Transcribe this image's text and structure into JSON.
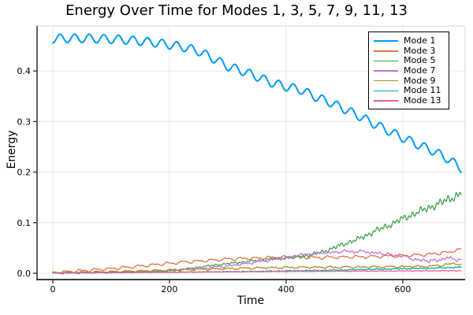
{
  "chart_data": {
    "type": "line",
    "title": "Energy Over Time for Modes 1, 3, 5, 7, 9, 11, 13",
    "xlabel": "Time",
    "ylabel": "Energy",
    "xlim": [
      -27,
      707
    ],
    "ylim": [
      -0.0125,
      0.489
    ],
    "grid": true,
    "legend_position": "top-right",
    "xticks": {
      "values": [
        0,
        200,
        400,
        600
      ],
      "labels": [
        "0",
        "200",
        "400",
        "600"
      ]
    },
    "yticks": {
      "values": [
        0.0,
        0.1,
        0.2,
        0.3,
        0.4
      ],
      "labels": [
        "0.0",
        "0.1",
        "0.2",
        "0.3",
        "0.4"
      ]
    },
    "colors": {
      "grid": "rgba(0,0,0,0.09)",
      "spine_dark": "#3c3c3c",
      "spine_light": "#d9d9d9",
      "tick": "#3c3c3c",
      "text": "#000000"
    },
    "series": [
      {
        "name": "Mode 1",
        "color": "#009af9",
        "width": 2,
        "osc": {
          "amp": 0.0085,
          "period": 25,
          "phase": -1.5708
        },
        "anchors": [
          [
            0,
            0.464
          ],
          [
            25,
            0.4645
          ],
          [
            50,
            0.4645
          ],
          [
            75,
            0.464
          ],
          [
            100,
            0.463
          ],
          [
            125,
            0.4615
          ],
          [
            150,
            0.459
          ],
          [
            175,
            0.456
          ],
          [
            200,
            0.452
          ],
          [
            225,
            0.447
          ],
          [
            250,
            0.439
          ],
          [
            275,
            0.425
          ],
          [
            300,
            0.409
          ],
          [
            325,
            0.4
          ],
          [
            350,
            0.389
          ],
          [
            375,
            0.377
          ],
          [
            400,
            0.369
          ],
          [
            425,
            0.363
          ],
          [
            450,
            0.349
          ],
          [
            475,
            0.338
          ],
          [
            500,
            0.325
          ],
          [
            525,
            0.311
          ],
          [
            550,
            0.296
          ],
          [
            575,
            0.282
          ],
          [
            600,
            0.268
          ],
          [
            625,
            0.255
          ],
          [
            650,
            0.243
          ],
          [
            675,
            0.228
          ],
          [
            700,
            0.208
          ]
        ]
      },
      {
        "name": "Mode 3",
        "color": "#e26f46",
        "width": 1.3,
        "osc": {
          "amp": 0.0022,
          "period": 25,
          "phase": 2.1,
          "saw": true
        },
        "noise": {
          "a0": 0.0006,
          "a1": 0.0008,
          "seed": 3
        },
        "anchors": [
          [
            0,
            0.0015
          ],
          [
            25,
            0.003
          ],
          [
            50,
            0.005
          ],
          [
            75,
            0.007
          ],
          [
            100,
            0.009
          ],
          [
            125,
            0.0115
          ],
          [
            150,
            0.014
          ],
          [
            175,
            0.017
          ],
          [
            200,
            0.0195
          ],
          [
            225,
            0.022
          ],
          [
            250,
            0.024
          ],
          [
            275,
            0.026
          ],
          [
            300,
            0.028
          ],
          [
            325,
            0.029
          ],
          [
            350,
            0.03
          ],
          [
            375,
            0.031
          ],
          [
            400,
            0.032
          ],
          [
            425,
            0.0315
          ],
          [
            450,
            0.031
          ],
          [
            475,
            0.0315
          ],
          [
            500,
            0.032
          ],
          [
            525,
            0.0325
          ],
          [
            550,
            0.033
          ],
          [
            575,
            0.034
          ],
          [
            600,
            0.035
          ],
          [
            625,
            0.036
          ],
          [
            650,
            0.038
          ],
          [
            675,
            0.041
          ],
          [
            690,
            0.045
          ],
          [
            700,
            0.047
          ]
        ]
      },
      {
        "name": "Mode 5",
        "color": "#3da44d",
        "width": 1.3,
        "noise": {
          "a0": 0.0008,
          "a1": 0.0105,
          "pow": 2.2,
          "seed": 5
        },
        "anchors": [
          [
            0,
            0.0005
          ],
          [
            50,
            0.001
          ],
          [
            100,
            0.002
          ],
          [
            150,
            0.003
          ],
          [
            200,
            0.0045
          ],
          [
            225,
            0.008
          ],
          [
            250,
            0.012
          ],
          [
            300,
            0.019
          ],
          [
            325,
            0.022
          ],
          [
            350,
            0.025
          ],
          [
            375,
            0.028
          ],
          [
            400,
            0.03
          ],
          [
            425,
            0.033
          ],
          [
            450,
            0.038
          ],
          [
            475,
            0.047
          ],
          [
            500,
            0.058
          ],
          [
            525,
            0.068
          ],
          [
            550,
            0.082
          ],
          [
            575,
            0.094
          ],
          [
            600,
            0.108
          ],
          [
            625,
            0.12
          ],
          [
            650,
            0.132
          ],
          [
            675,
            0.144
          ],
          [
            700,
            0.158
          ]
        ]
      },
      {
        "name": "Mode 7",
        "color": "#c271d2",
        "width": 1.3,
        "osc": {
          "amp": 0.0012,
          "period": 25,
          "phase": 0.5,
          "saw": true
        },
        "noise": {
          "a0": 0.001,
          "a1": 0.003,
          "pow": 1.5,
          "seed": 7
        },
        "anchors": [
          [
            0,
            0.0005
          ],
          [
            50,
            0.001
          ],
          [
            100,
            0.002
          ],
          [
            150,
            0.0035
          ],
          [
            200,
            0.006
          ],
          [
            250,
            0.0095
          ],
          [
            300,
            0.014
          ],
          [
            325,
            0.018
          ],
          [
            350,
            0.022
          ],
          [
            375,
            0.027
          ],
          [
            400,
            0.031
          ],
          [
            425,
            0.036
          ],
          [
            450,
            0.039
          ],
          [
            475,
            0.041
          ],
          [
            500,
            0.043
          ],
          [
            525,
            0.043
          ],
          [
            550,
            0.041
          ],
          [
            575,
            0.037
          ],
          [
            600,
            0.034
          ],
          [
            615,
            0.029
          ],
          [
            630,
            0.026
          ],
          [
            645,
            0.024
          ],
          [
            660,
            0.026
          ],
          [
            675,
            0.03
          ],
          [
            690,
            0.028
          ],
          [
            700,
            0.027
          ]
        ]
      },
      {
        "name": "Mode 9",
        "color": "#ac8d18",
        "width": 1.3,
        "osc": {
          "amp": 0.0013,
          "period": 25,
          "phase": 1.0,
          "saw": true
        },
        "noise": {
          "a0": 0.0005,
          "a1": 0.001,
          "seed": 9
        },
        "anchors": [
          [
            0,
            0.001
          ],
          [
            50,
            0.002
          ],
          [
            100,
            0.003
          ],
          [
            150,
            0.0045
          ],
          [
            200,
            0.006
          ],
          [
            250,
            0.0075
          ],
          [
            300,
            0.009
          ],
          [
            350,
            0.0105
          ],
          [
            400,
            0.0115
          ],
          [
            450,
            0.0118
          ],
          [
            500,
            0.012
          ],
          [
            550,
            0.0125
          ],
          [
            600,
            0.013
          ],
          [
            650,
            0.014
          ],
          [
            675,
            0.017
          ],
          [
            688,
            0.02
          ],
          [
            700,
            0.016
          ]
        ]
      },
      {
        "name": "Mode 11",
        "color": "#00a9ad",
        "width": 1.3,
        "noise": {
          "a0": 0.0004,
          "a1": 0.0012,
          "seed": 11
        },
        "anchors": [
          [
            0,
            0.0005
          ],
          [
            100,
            0.001
          ],
          [
            200,
            0.002
          ],
          [
            300,
            0.003
          ],
          [
            400,
            0.0045
          ],
          [
            500,
            0.0065
          ],
          [
            600,
            0.009
          ],
          [
            650,
            0.01
          ],
          [
            700,
            0.012
          ]
        ]
      },
      {
        "name": "Mode 13",
        "color": "#ed5d92",
        "width": 1.3,
        "noise": {
          "a0": 0.0003,
          "a1": 0.0006,
          "seed": 13
        },
        "anchors": [
          [
            0,
            0.001
          ],
          [
            100,
            0.0015
          ],
          [
            200,
            0.002
          ],
          [
            300,
            0.0028
          ],
          [
            400,
            0.0035
          ],
          [
            500,
            0.004
          ],
          [
            600,
            0.0045
          ],
          [
            700,
            0.005
          ]
        ]
      }
    ]
  }
}
